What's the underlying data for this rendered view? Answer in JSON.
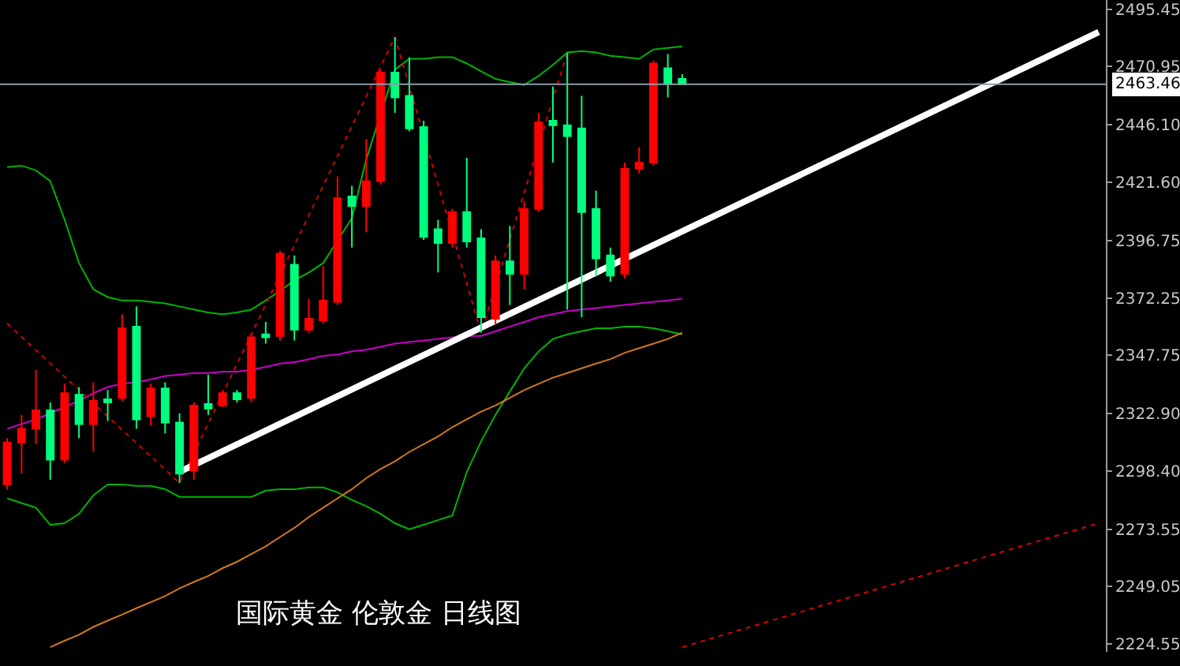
{
  "chart_data": {
    "type": "candlestick",
    "title": "国际黄金 伦敦金 日线图",
    "categories": [
      null,
      null,
      null,
      null,
      null,
      null,
      null,
      null,
      null,
      null,
      null,
      null,
      null,
      null,
      null,
      null,
      null,
      null,
      null,
      null,
      null,
      null,
      null,
      null,
      null,
      null,
      null,
      null,
      null,
      null,
      null,
      null,
      null,
      null,
      null,
      null,
      null,
      null,
      null,
      null,
      null,
      null,
      null,
      null,
      null,
      null,
      null,
      null,
      null,
      null,
      null,
      null,
      null,
      null,
      null,
      null,
      null,
      null,
      null,
      null,
      null,
      null,
      null,
      null,
      null,
      null,
      null,
      null,
      null,
      null,
      null,
      null,
      null,
      null,
      null,
      null,
      null
    ],
    "ohlc": [
      [
        2292.6,
        2312.4,
        2290.6,
        2310.5
      ],
      [
        2310.5,
        2322.3,
        2297.2,
        2316.4
      ],
      [
        2316.4,
        2341.5,
        2309.8,
        2324.3
      ],
      [
        2324.3,
        2327.6,
        2294.6,
        2303.2
      ],
      [
        2303.2,
        2335.6,
        2301.9,
        2331.6
      ],
      [
        2330.9,
        2334.2,
        2312.4,
        2318.4
      ],
      [
        2318.4,
        2336.2,
        2306.5,
        2328.3
      ],
      [
        2329.0,
        2332.9,
        2319.7,
        2327.6
      ],
      [
        2329.6,
        2365.3,
        2328.3,
        2359.3
      ],
      [
        2360.0,
        2368.6,
        2316.4,
        2320.4
      ],
      [
        2321.7,
        2335.6,
        2317.7,
        2333.6
      ],
      [
        2333.6,
        2336.2,
        2314.4,
        2319.0
      ],
      [
        2319.0,
        2323.0,
        2293.3,
        2297.2
      ],
      [
        2298.6,
        2327.6,
        2294.6,
        2326.3
      ],
      [
        2327.0,
        2339.5,
        2322.3,
        2325.0
      ],
      [
        2326.3,
        2332.9,
        2325.7,
        2331.6
      ],
      [
        2331.6,
        2332.9,
        2327.6,
        2329.0
      ],
      [
        2329.6,
        2356.7,
        2327.6,
        2355.4
      ],
      [
        2356.7,
        2362.0,
        2352.7,
        2355.4
      ],
      [
        2356.0,
        2392.4,
        2354.1,
        2391.1
      ],
      [
        2386.4,
        2390.4,
        2354.1,
        2358.7
      ],
      [
        2358.7,
        2371.9,
        2357.4,
        2363.3
      ],
      [
        2362.7,
        2385.8,
        2361.3,
        2371.2
      ],
      [
        2370.6,
        2424.1,
        2369.2,
        2414.8
      ],
      [
        2415.5,
        2420.1,
        2393.7,
        2411.5
      ],
      [
        2411.5,
        2440.0,
        2400.3,
        2422.1
      ],
      [
        2422.1,
        2469.7,
        2420.8,
        2468.4
      ],
      [
        2468.4,
        2483.6,
        2451.2,
        2457.8
      ],
      [
        2458.5,
        2475.0,
        2443.3,
        2444.6
      ],
      [
        2445.2,
        2447.9,
        2397.0,
        2398.3
      ],
      [
        2401.6,
        2405.6,
        2383.1,
        2395.7
      ],
      [
        2395.7,
        2410.2,
        2393.7,
        2408.9
      ],
      [
        2408.9,
        2432.0,
        2393.7,
        2396.3
      ],
      [
        2397.7,
        2401.6,
        2357.4,
        2364.0
      ],
      [
        2363.3,
        2390.4,
        2360.7,
        2387.8
      ],
      [
        2387.8,
        2403.0,
        2369.2,
        2382.5
      ],
      [
        2382.5,
        2413.5,
        2375.9,
        2410.2
      ],
      [
        2410.2,
        2451.2,
        2408.9,
        2447.2
      ],
      [
        2447.9,
        2462.4,
        2430.0,
        2445.9
      ],
      [
        2445.9,
        2477.0,
        2367.3,
        2441.3
      ],
      [
        2444.6,
        2458.5,
        2364.0,
        2408.9
      ],
      [
        2410.2,
        2418.1,
        2381.8,
        2389.1
      ],
      [
        2390.4,
        2393.7,
        2379.2,
        2381.8
      ],
      [
        2382.5,
        2430.0,
        2380.5,
        2427.4
      ],
      [
        2427.4,
        2436.6,
        2425.4,
        2430.0
      ],
      [
        2430.0,
        2473.6,
        2428.7,
        2472.3
      ],
      [
        2470.3,
        2476.3,
        2457.8,
        2463.5
      ],
      [
        2465.7,
        2467.7,
        2463.1,
        2463.46
      ],
      null,
      null,
      null,
      null,
      null,
      null,
      null,
      null,
      null,
      null,
      null,
      null,
      null,
      null,
      null,
      null,
      null,
      null,
      null,
      null,
      null,
      null,
      null,
      null,
      null,
      null,
      null,
      null,
      null
    ],
    "colors": [
      "#ff0000",
      "#ff0000",
      "#ff0000",
      "#00ff7f",
      "#ff0000",
      "#00ff7f",
      "#ff0000",
      "#00ff7f",
      "#ff0000",
      "#00ff7f",
      "#ff0000",
      "#00ff7f",
      "#00ff7f",
      "#ff0000",
      "#00ff7f",
      "#ff0000",
      "#00ff7f",
      "#ff0000",
      "#00ff7f",
      "#ff0000",
      "#00ff7f",
      "#ff0000",
      "#ff0000",
      "#ff0000",
      "#00ff7f",
      "#ff0000",
      "#ff0000",
      "#00ff7f",
      "#00ff7f",
      "#00ff7f",
      "#00ff7f",
      "#ff0000",
      "#00ff7f",
      "#00ff7f",
      "#ff0000",
      "#00ff7f",
      "#ff0000",
      "#ff0000",
      "#00ff7f",
      "#00ff7f",
      "#00ff7f",
      "#00ff7f",
      "#00ff7f",
      "#ff0000",
      "#ff0000",
      "#ff0000",
      "#00ff7f",
      "#00ff7f",
      null,
      null,
      null,
      null,
      null,
      null,
      null,
      null,
      null,
      null,
      null,
      null,
      null,
      null,
      null,
      null,
      null,
      null,
      null,
      null,
      null,
      null,
      null,
      null,
      null,
      null,
      null,
      null,
      null
    ],
    "series": [
      {
        "type": "line",
        "color": "#00b400",
        "values": [
          2428.1,
          2428.7,
          2426.7,
          2422.1,
          2405.6,
          2387.1,
          2375.9,
          2372.6,
          2371.2,
          2371.2,
          2370.6,
          2369.9,
          2368.6,
          2367.3,
          2366.0,
          2365.3,
          2366.0,
          2367.3,
          2371.2,
          2375.2,
          2379.8,
          2383.1,
          2387.1,
          null,
          2406.3,
          2431.4,
          null,
          2469.7,
          2474.3,
          2474.3,
          2475.0,
          2475.0,
          2472.3,
          2469.0,
          2465.7,
          2464.4,
          2463.1,
          2467.0,
          2471.7,
          2477.0,
          2477.6,
          2477.0,
          2475.6,
          2475.0,
          2474.3,
          2478.3,
          2478.9,
          2479.6,
          null,
          null,
          null,
          null,
          null,
          null,
          null,
          null,
          null,
          null,
          null,
          null,
          null,
          null,
          null,
          null,
          null,
          null,
          null,
          null,
          null,
          null,
          null,
          null,
          null,
          null,
          null,
          null,
          null
        ]
      },
      {
        "type": "line",
        "color": "#00b400",
        "values": [
          2286.7,
          2284.7,
          2282.7,
          2275.4,
          2276.1,
          2280.1,
          2288.0,
          2292.6,
          2292.6,
          2292.0,
          2292.0,
          2290.6,
          2287.3,
          2287.3,
          2287.3,
          2287.3,
          2287.3,
          2287.3,
          2290.0,
          2290.6,
          2290.6,
          2291.3,
          2291.3,
          2289.3,
          2286.0,
          2283.4,
          2280.1,
          2276.1,
          2273.5,
          2275.4,
          2277.4,
          2279.4,
          2297.9,
          2311.1,
          2322.3,
          2332.3,
          2342.2,
          2349.4,
          2354.7,
          2356.7,
          2358.0,
          2359.3,
          2359.3,
          2360.0,
          2360.0,
          2359.3,
          2358.0,
          2356.7,
          null,
          null,
          null,
          null,
          null,
          null,
          null,
          null,
          null,
          null,
          null,
          null,
          null,
          null,
          null,
          null,
          null,
          null,
          null,
          null,
          null,
          null,
          null,
          null,
          null,
          null,
          null,
          null,
          null
        ]
      },
      {
        "type": "line",
        "color": "#c800c8",
        "values": [
          2316.4,
          2318.4,
          2320.4,
          2323.0,
          2325.7,
          2328.3,
          2331.6,
          2334.2,
          2335.6,
          2336.2,
          2337.5,
          2338.9,
          2339.5,
          2340.2,
          2340.2,
          2340.8,
          2340.8,
          2341.5,
          2342.8,
          2344.2,
          2344.8,
          2346.1,
          2347.5,
          2348.1,
          2349.4,
          2350.1,
          2351.4,
          2352.7,
          2353.4,
          2354.1,
          2354.7,
          2355.4,
          2356.0,
          2356.0,
          2358.0,
          2360.0,
          2362.0,
          2364.0,
          2365.3,
          2366.6,
          2367.3,
          2367.9,
          2368.6,
          2369.2,
          2369.9,
          2370.6,
          2371.2,
          2371.9,
          null,
          null,
          null,
          null,
          null,
          null,
          null,
          null,
          null,
          null,
          null,
          null,
          null,
          null,
          null,
          null,
          null,
          null,
          null,
          null,
          null,
          null,
          null,
          null,
          null,
          null,
          null,
          null,
          null
        ]
      },
      {
        "type": "line",
        "color": "#d2781e",
        "values": [
          null,
          null,
          null,
          2223.2,
          2225.9,
          2228.5,
          2231.8,
          2234.5,
          2237.1,
          2239.8,
          2242.4,
          2245.0,
          2248.3,
          2251.0,
          2253.6,
          2256.9,
          2259.6,
          2262.9,
          2266.2,
          2270.2,
          2274.1,
          2278.7,
          2282.7,
          2286.7,
          2290.6,
          2295.3,
          2299.2,
          2302.5,
          2306.5,
          2309.8,
          2313.1,
          2317.1,
          2320.4,
          2323.7,
          2326.3,
          2329.6,
          2332.9,
          2335.6,
          2338.2,
          2340.2,
          2342.2,
          2344.2,
          2346.1,
          2348.8,
          2350.8,
          2352.7,
          2354.7,
          2357.4,
          null,
          null,
          null,
          null,
          null,
          null,
          null,
          null,
          null,
          null,
          null,
          null,
          null,
          null,
          null,
          null,
          null,
          null,
          null,
          null,
          null,
          null,
          null,
          null,
          null,
          null,
          null,
          null,
          null
        ]
      },
      {
        "type": "line",
        "color": "#d00000",
        "line_style": "dotted",
        "values": [
          2361.3,
          null,
          null,
          null,
          null,
          null,
          null,
          null,
          null,
          null,
          null,
          null,
          2293.3,
          null,
          null,
          null,
          null,
          null,
          null,
          null,
          null,
          null,
          null,
          null,
          null,
          null,
          null,
          2483.6,
          null,
          null,
          null,
          null,
          null,
          2357.4,
          null,
          null,
          null,
          null,
          null,
          2477.0,
          null,
          null,
          null,
          null,
          null,
          null,
          null,
          null,
          null,
          null,
          null,
          null,
          null,
          null,
          null,
          null,
          null,
          null,
          null,
          null,
          null,
          null,
          null,
          null,
          null,
          null,
          null,
          null,
          null,
          null,
          null,
          null,
          null,
          null,
          null,
          null,
          null
        ]
      },
      {
        "type": "line",
        "color": "#ffffff",
        "values": [
          null,
          null,
          null,
          null,
          null,
          null,
          null,
          null,
          null,
          null,
          null,
          null,
          2298.0,
          null,
          null,
          null,
          null,
          null,
          null,
          null,
          null,
          null,
          null,
          null,
          null,
          null,
          null,
          null,
          null,
          null,
          null,
          null,
          null,
          null,
          null,
          null,
          null,
          null,
          null,
          null,
          null,
          null,
          null,
          null,
          null,
          null,
          null,
          null,
          null,
          null,
          null,
          null,
          null,
          null,
          null,
          null,
          null,
          null,
          null,
          null,
          null,
          null,
          null,
          null,
          null,
          null,
          null,
          null,
          null,
          null,
          null,
          null,
          null,
          null,
          null,
          null,
          2485.7
        ]
      },
      {
        "type": "line",
        "color": "#e00000",
        "line_style": "dotted",
        "values": [
          null,
          null,
          null,
          null,
          null,
          null,
          null,
          null,
          null,
          null,
          null,
          null,
          null,
          null,
          null,
          null,
          null,
          null,
          null,
          null,
          null,
          null,
          null,
          null,
          null,
          null,
          null,
          null,
          null,
          null,
          null,
          null,
          null,
          null,
          null,
          null,
          null,
          null,
          null,
          null,
          null,
          null,
          null,
          null,
          null,
          null,
          null,
          2223.2,
          null,
          null,
          null,
          null,
          null,
          null,
          null,
          null,
          null,
          null,
          null,
          null,
          null,
          null,
          null,
          null,
          null,
          null,
          null,
          null,
          null,
          null,
          null,
          null,
          null,
          null,
          null,
          null,
          2276.1
        ]
      }
    ],
    "ylim": [
      2221.2,
      2499.4
    ],
    "yticks": [
      2495.45,
      2470.95,
      {
        "value": 2446.1,
        "label": "2446.10"
      },
      {
        "value": 2421.6,
        "label": "2421.60"
      },
      2396.75,
      2372.25,
      2347.75,
      {
        "value": 2322.9,
        "label": "2322.90"
      },
      {
        "value": 2298.4,
        "label": "2298.40"
      },
      2273.55,
      2249.05,
      2224.55
    ],
    "ref_lines": [
      {
        "axis": "y",
        "value": 2463.46,
        "label": "2463.46",
        "color": "#8c9aa8"
      }
    ],
    "tick_labels": "y",
    "grid": false,
    "legend": false
  }
}
